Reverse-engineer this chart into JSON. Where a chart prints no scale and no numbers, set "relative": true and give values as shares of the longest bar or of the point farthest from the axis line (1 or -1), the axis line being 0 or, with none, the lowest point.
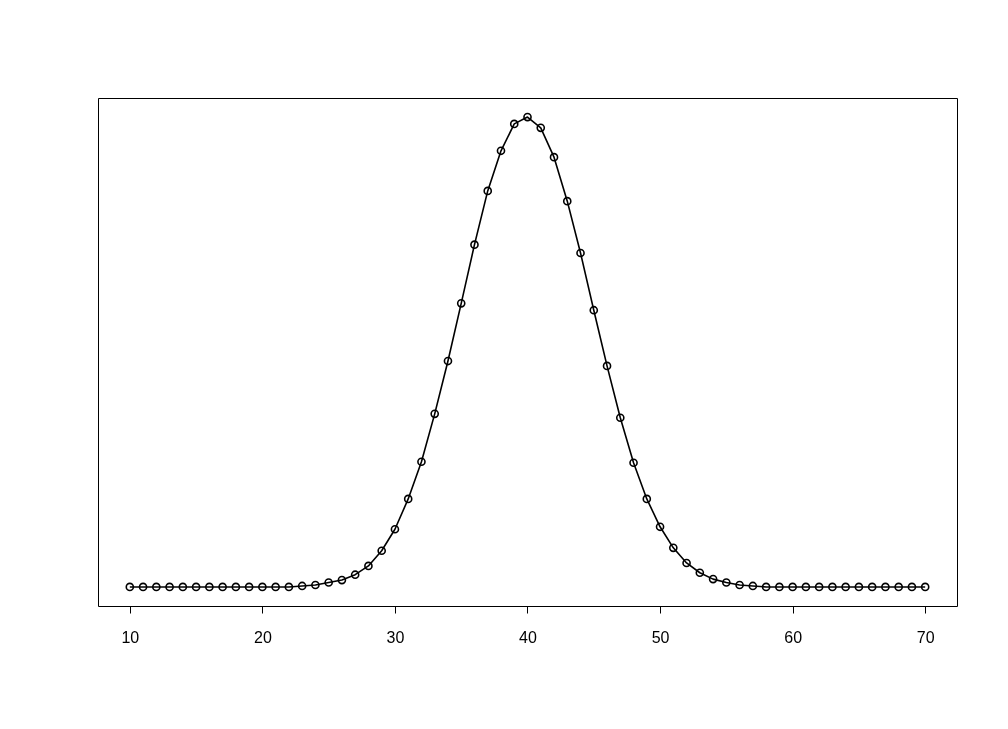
{
  "chart_data": {
    "type": "line",
    "relative": true,
    "marker": "circle",
    "line_style": "solid",
    "color": "#000000",
    "x": [
      10,
      11,
      12,
      13,
      14,
      15,
      16,
      17,
      18,
      19,
      20,
      21,
      22,
      23,
      24,
      25,
      26,
      27,
      28,
      29,
      30,
      31,
      32,
      33,
      34,
      35,
      36,
      37,
      38,
      39,
      40,
      41,
      42,
      43,
      44,
      45,
      46,
      47,
      48,
      49,
      50,
      51,
      52,
      53,
      54,
      55,
      56,
      57,
      58,
      59,
      60,
      61,
      62,
      63,
      64,
      65,
      66,
      67,
      68,
      69,
      70
    ],
    "values": [
      0.039,
      0.039,
      0.039,
      0.039,
      0.039,
      0.039,
      0.039,
      0.039,
      0.039,
      0.039,
      0.039,
      0.039,
      0.039,
      0.041,
      0.043,
      0.048,
      0.053,
      0.064,
      0.082,
      0.113,
      0.157,
      0.219,
      0.295,
      0.393,
      0.501,
      0.619,
      0.739,
      0.849,
      0.931,
      0.986,
      1,
      0.978,
      0.918,
      0.828,
      0.722,
      0.605,
      0.491,
      0.385,
      0.293,
      0.219,
      0.162,
      0.119,
      0.088,
      0.068,
      0.055,
      0.048,
      0.043,
      0.041,
      0.039,
      0.039,
      0.039,
      0.039,
      0.039,
      0.039,
      0.039,
      0.039,
      0.039,
      0.039,
      0.039,
      0.039,
      0.039
    ],
    "xlim": [
      7.6,
      72.4
    ],
    "xticks": [
      10,
      20,
      30,
      40,
      50,
      60,
      70
    ]
  }
}
